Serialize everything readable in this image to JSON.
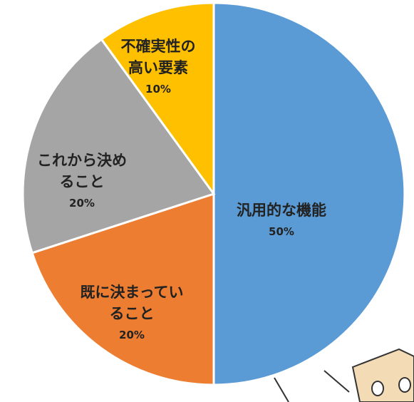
{
  "chart_data": {
    "type": "pie",
    "categories": [
      "汎用的な機能",
      "既に決まっていること",
      "これから決めること",
      "不確実性の高い要素"
    ],
    "values": [
      50,
      20,
      20,
      10
    ],
    "value_labels": [
      "50%",
      "20%",
      "20%",
      "10%"
    ],
    "colors": [
      "#5b9bd5",
      "#ed7d31",
      "#a5a5a5",
      "#ffc000"
    ]
  }
}
